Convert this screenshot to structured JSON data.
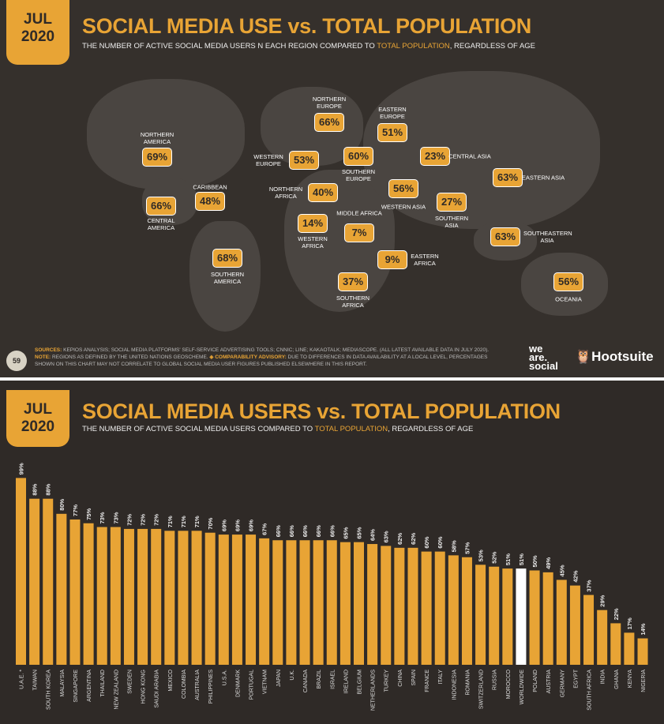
{
  "slide1": {
    "date_month": "JUL",
    "date_year": "2020",
    "title": "SOCIAL MEDIA USE vs. TOTAL POPULATION",
    "subtitle_pre": "THE NUMBER OF ACTIVE SOCIAL MEDIA USERS N EACH REGION COMPARED TO ",
    "subtitle_hl": "TOTAL POPULATION",
    "subtitle_post": ", REGARDLESS OF AGE",
    "regions": [
      {
        "name": "NORTHERN AMERICA",
        "value": "69%"
      },
      {
        "name": "CENTRAL AMERICA",
        "value": "66%"
      },
      {
        "name": "CARIBBEAN",
        "value": "48%"
      },
      {
        "name": "SOUTHERN AMERICA",
        "value": "68%"
      },
      {
        "name": "WESTERN EUROPE",
        "value": "53%"
      },
      {
        "name": "NORTHERN EUROPE",
        "value": "66%"
      },
      {
        "name": "SOUTHERN EUROPE",
        "value": "60%"
      },
      {
        "name": "EASTERN EUROPE",
        "value": "51%"
      },
      {
        "name": "NORTHERN AFRICA",
        "value": "40%"
      },
      {
        "name": "WESTERN AFRICA",
        "value": "14%"
      },
      {
        "name": "MIDDLE AFRICA",
        "value": "7%"
      },
      {
        "name": "EASTERN AFRICA",
        "value": "9%"
      },
      {
        "name": "SOUTHERN AFRICA",
        "value": "37%"
      },
      {
        "name": "WESTERN ASIA",
        "value": "56%"
      },
      {
        "name": "CENTRAL ASIA",
        "value": "23%"
      },
      {
        "name": "SOUTHERN ASIA",
        "value": "27%"
      },
      {
        "name": "EASTERN ASIA",
        "value": "63%"
      },
      {
        "name": "SOUTHEASTERN ASIA",
        "value": "63%"
      },
      {
        "name": "OCEANIA",
        "value": "56%"
      }
    ],
    "page_number": "59",
    "sources_label": "SOURCES:",
    "sources_text": " KEPIOS ANALYSIS; SOCIAL MEDIA PLATFORMS' SELF-SERVICE ADVERTISING TOOLS; CNNIC; LINE; KAKAOTALK; MEDIASCOPE. (ALL LATEST AVAILABLE DATA IN JULY 2020).",
    "note_label": "NOTE:",
    "note_text": " REGIONS AS DEFINED BY THE UNITED NATIONS GEOSCHEME. ",
    "advisory_label": "◈ COMPARABILITY ADVISORY:",
    "advisory_text": " DUE TO DIFFERENCES IN DATA AVAILABILITY AT A LOCAL LEVEL, PERCENTAGES SHOWN ON THIS CHART MAY NOT CORRELATE TO GLOBAL SOCIAL MEDIA USER FIGURES PUBLISHED ELSEWHERE IN THIS REPORT.",
    "logo_was": "we are social",
    "logo_hootsuite": "Hootsuite"
  },
  "slide2": {
    "date_month": "JUL",
    "date_year": "2020",
    "title": "SOCIAL MEDIA USERS vs. TOTAL POPULATION",
    "subtitle_pre": "THE NUMBER OF ACTIVE SOCIAL MEDIA USERS COMPARED TO ",
    "subtitle_hl": "TOTAL POPULATION",
    "subtitle_post": ", REGARDLESS OF AGE"
  },
  "colors": {
    "accent": "#e8a435",
    "highlight": "#ffffff",
    "background": "#2f2a27"
  },
  "chart_data": {
    "type": "bar",
    "categories": [
      "U.A.E. *",
      "TAIWAN",
      "SOUTH KOREA",
      "MALAYSIA",
      "SINGAPORE",
      "ARGENTINA",
      "THAILAND",
      "NEW ZEALAND",
      "SWEDEN",
      "HONG KONG",
      "SAUDI ARABIA",
      "MEXICO",
      "COLOMBIA",
      "AUSTRALIA",
      "PHILIPPINES",
      "U.S.A.",
      "DENMARK",
      "PORTUGAL",
      "VIETNAM",
      "JAPAN",
      "U.K.",
      "CANADA",
      "BRAZIL",
      "ISRAEL",
      "IRELAND",
      "BELGIUM",
      "NETHERLANDS",
      "TURKEY",
      "CHINA",
      "SPAIN",
      "FRANCE",
      "ITALY",
      "INDONESIA",
      "ROMANIA",
      "SWITZERLAND",
      "RUSSIA",
      "MOROCCO",
      "WORLDWIDE",
      "POLAND",
      "AUSTRIA",
      "GERMANY",
      "EGYPT",
      "SOUTH AFRICA",
      "INDIA",
      "GHANA",
      "KENYA",
      "NIGERIA"
    ],
    "values": [
      99,
      88,
      88,
      80,
      77,
      75,
      73,
      73,
      72,
      72,
      72,
      71,
      71,
      71,
      70,
      69,
      69,
      69,
      67,
      66,
      66,
      66,
      66,
      66,
      65,
      65,
      64,
      63,
      62,
      62,
      60,
      60,
      58,
      57,
      53,
      52,
      51,
      51,
      50,
      49,
      45,
      42,
      37,
      29,
      22,
      17,
      14
    ],
    "unit": "%",
    "highlight_category": "WORLDWIDE",
    "ylim": [
      0,
      100
    ],
    "grid": false
  }
}
